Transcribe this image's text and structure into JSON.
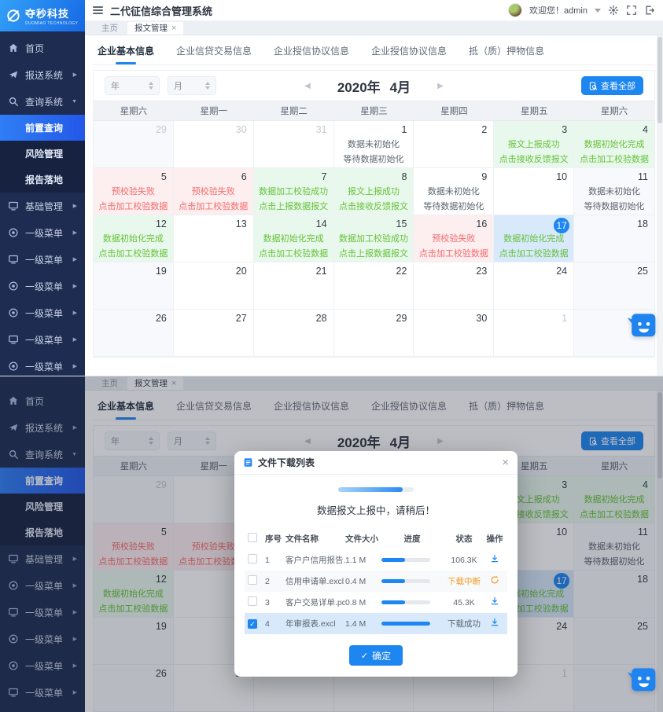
{
  "brand": {
    "name": "夺秒科技",
    "subtitle": "DUOMIAO TECHNOLOGY"
  },
  "header": {
    "title": "二代征信综合管理系统",
    "welcome": "欢迎您！admin"
  },
  "window_tabs": [
    {
      "name": "window-tab-home",
      "label": "主页",
      "active": false,
      "closable": false
    },
    {
      "name": "window-tab-message-manage",
      "label": "报文管理",
      "active": true,
      "closable": true
    }
  ],
  "sidebar": {
    "items": [
      {
        "name": "sidebar-item-home",
        "label": "首页",
        "icon": "home"
      },
      {
        "name": "sidebar-item-report-system",
        "label": "报送系统",
        "icon": "send",
        "arrow": "right"
      },
      {
        "name": "sidebar-item-query-system",
        "label": "查询系统",
        "icon": "search",
        "arrow": "down",
        "expanded": true
      },
      {
        "name": "sidebar-item-front-query",
        "label": "前置查询",
        "sub": true,
        "active": true
      },
      {
        "name": "sidebar-item-risk-manage",
        "label": "风险管理",
        "sub": true
      },
      {
        "name": "sidebar-item-report-landing",
        "label": "报告落地",
        "sub": true
      },
      {
        "name": "sidebar-item-basic-manage",
        "label": "基础管理",
        "icon": "monitor",
        "arrow": "right"
      },
      {
        "name": "sidebar-item-level1-menu-1",
        "label": "一级菜单",
        "icon": "disc",
        "arrow": "right"
      },
      {
        "name": "sidebar-item-level1-menu-2",
        "label": "一级菜单",
        "icon": "monitor",
        "arrow": "right"
      },
      {
        "name": "sidebar-item-level1-menu-3",
        "label": "一级菜单",
        "icon": "disc",
        "arrow": "right"
      },
      {
        "name": "sidebar-item-level1-menu-4",
        "label": "一级菜单",
        "icon": "disc",
        "arrow": "right"
      },
      {
        "name": "sidebar-item-level1-menu-5",
        "label": "一级菜单",
        "icon": "monitor",
        "arrow": "right"
      },
      {
        "name": "sidebar-item-level1-menu-6",
        "label": "一级菜单",
        "icon": "disc",
        "arrow": "right"
      }
    ]
  },
  "page_tabs": [
    {
      "name": "tab-enterprise-basic-info",
      "label": "企业基本信息",
      "active": true
    },
    {
      "name": "tab-enterprise-credit-transaction-info",
      "label": "企业信贷交易信息",
      "active": false
    },
    {
      "name": "tab-enterprise-credit-agreement-info",
      "label": "企业授信协议信息",
      "active": false
    },
    {
      "name": "tab-enterprise-credit-agreement-info-2",
      "label": "企业授信协议信息",
      "active": false
    },
    {
      "name": "tab-collateral-info",
      "label": "抵（质）押物信息",
      "active": false
    }
  ],
  "toolbar": {
    "year_placeholder": "年",
    "month_placeholder": "月",
    "period_year": "2020年",
    "period_month": "4月",
    "view_all_label": "查看全部"
  },
  "calendar": {
    "weekdays": [
      "星期六",
      "星期一",
      "星期二",
      "星期三",
      "星期四",
      "星期五",
      "星期六"
    ],
    "cells": [
      {
        "d": "29",
        "dim": true
      },
      {
        "d": "30",
        "dim": true
      },
      {
        "d": "31",
        "dim": true
      },
      {
        "d": "1",
        "type": "info",
        "l1": "数据未初始化",
        "l2": "等待数据初始化"
      },
      {
        "d": "2"
      },
      {
        "d": "3",
        "type": "success",
        "l1": "报文上报成功",
        "l2": "点击接收反馈报文"
      },
      {
        "d": "4",
        "type": "success",
        "l1": "数据初始化完成",
        "l2": "点击加工校验数据"
      },
      {
        "d": "5",
        "type": "danger",
        "l1": "预校验失败",
        "l2": "点击加工校验数据"
      },
      {
        "d": "6",
        "type": "danger",
        "l1": "预校验失败",
        "l2": "点击加工校验数据"
      },
      {
        "d": "7",
        "type": "success",
        "l1": "数据加工校验成功",
        "l2": "点击上报数据报文"
      },
      {
        "d": "8",
        "type": "success",
        "l1": "报文上报成功",
        "l2": "点击接收反馈报文"
      },
      {
        "d": "9",
        "type": "info",
        "l1": "数据未初始化",
        "l2": "等待数据初始化"
      },
      {
        "d": "10"
      },
      {
        "d": "11",
        "type": "info",
        "l1": "数据未初始化",
        "l2": "等待数据初始化"
      },
      {
        "d": "12",
        "type": "success",
        "l1": "数据初始化完成",
        "l2": "点击加工校验数据"
      },
      {
        "d": "13"
      },
      {
        "d": "14",
        "type": "success",
        "l1": "数据初始化完成",
        "l2": "点击加工校验数据"
      },
      {
        "d": "15",
        "type": "success",
        "l1": "数据加工校验成功",
        "l2": "点击上报数据报文"
      },
      {
        "d": "16",
        "type": "danger",
        "l1": "预校验失败",
        "l2": "点击加工校验数据"
      },
      {
        "d": "17",
        "type": "today",
        "l1": "数据初始化完成",
        "l2": "点击加工校验数据"
      },
      {
        "d": "18"
      },
      {
        "d": "19"
      },
      {
        "d": "20"
      },
      {
        "d": "21"
      },
      {
        "d": "22"
      },
      {
        "d": "23"
      },
      {
        "d": "24"
      },
      {
        "d": "25"
      },
      {
        "d": "26"
      },
      {
        "d": "27"
      },
      {
        "d": "28"
      },
      {
        "d": "29"
      },
      {
        "d": "30"
      },
      {
        "d": "1",
        "dim": true
      },
      {
        "d": "2",
        "dim": true
      }
    ]
  },
  "modal": {
    "title": "文件下载列表",
    "upload_progress_percent": 85,
    "message": "数据报文上报中，请稍后！",
    "columns": [
      "序号",
      "文件名称",
      "文件大小",
      "进度",
      "状态",
      "操作"
    ],
    "rows": [
      {
        "index": "1",
        "name": "客户户信用报告.pdf",
        "size": "1.1 M",
        "progress": 48,
        "status": "106.3K",
        "status_type": "normal",
        "action": "download",
        "checked": false,
        "selected": false
      },
      {
        "index": "2",
        "name": "信用申请单.excl",
        "size": "0.4 M",
        "progress": 48,
        "status": "下载中断",
        "status_type": "warning",
        "action": "refresh",
        "checked": false,
        "selected": false
      },
      {
        "index": "3",
        "name": "客户交易详单.pdf",
        "size": "0.8 M",
        "progress": 48,
        "status": "45.3K",
        "status_type": "normal",
        "action": "download",
        "checked": false,
        "selected": false
      },
      {
        "index": "4",
        "name": "年审报表.excl",
        "size": "1.4 M",
        "progress": 100,
        "status": "下载成功",
        "status_type": "normal",
        "action": "download",
        "checked": true,
        "selected": true
      }
    ],
    "confirm_label": "确定"
  },
  "colors": {
    "primary": "#1e86f0",
    "success": "#67c23a",
    "danger": "#f56c6c",
    "warning": "#f59a23",
    "success_bg": "#e9f8ed",
    "danger_bg": "#fdeef0",
    "today_bg": "#d7e9fb"
  }
}
